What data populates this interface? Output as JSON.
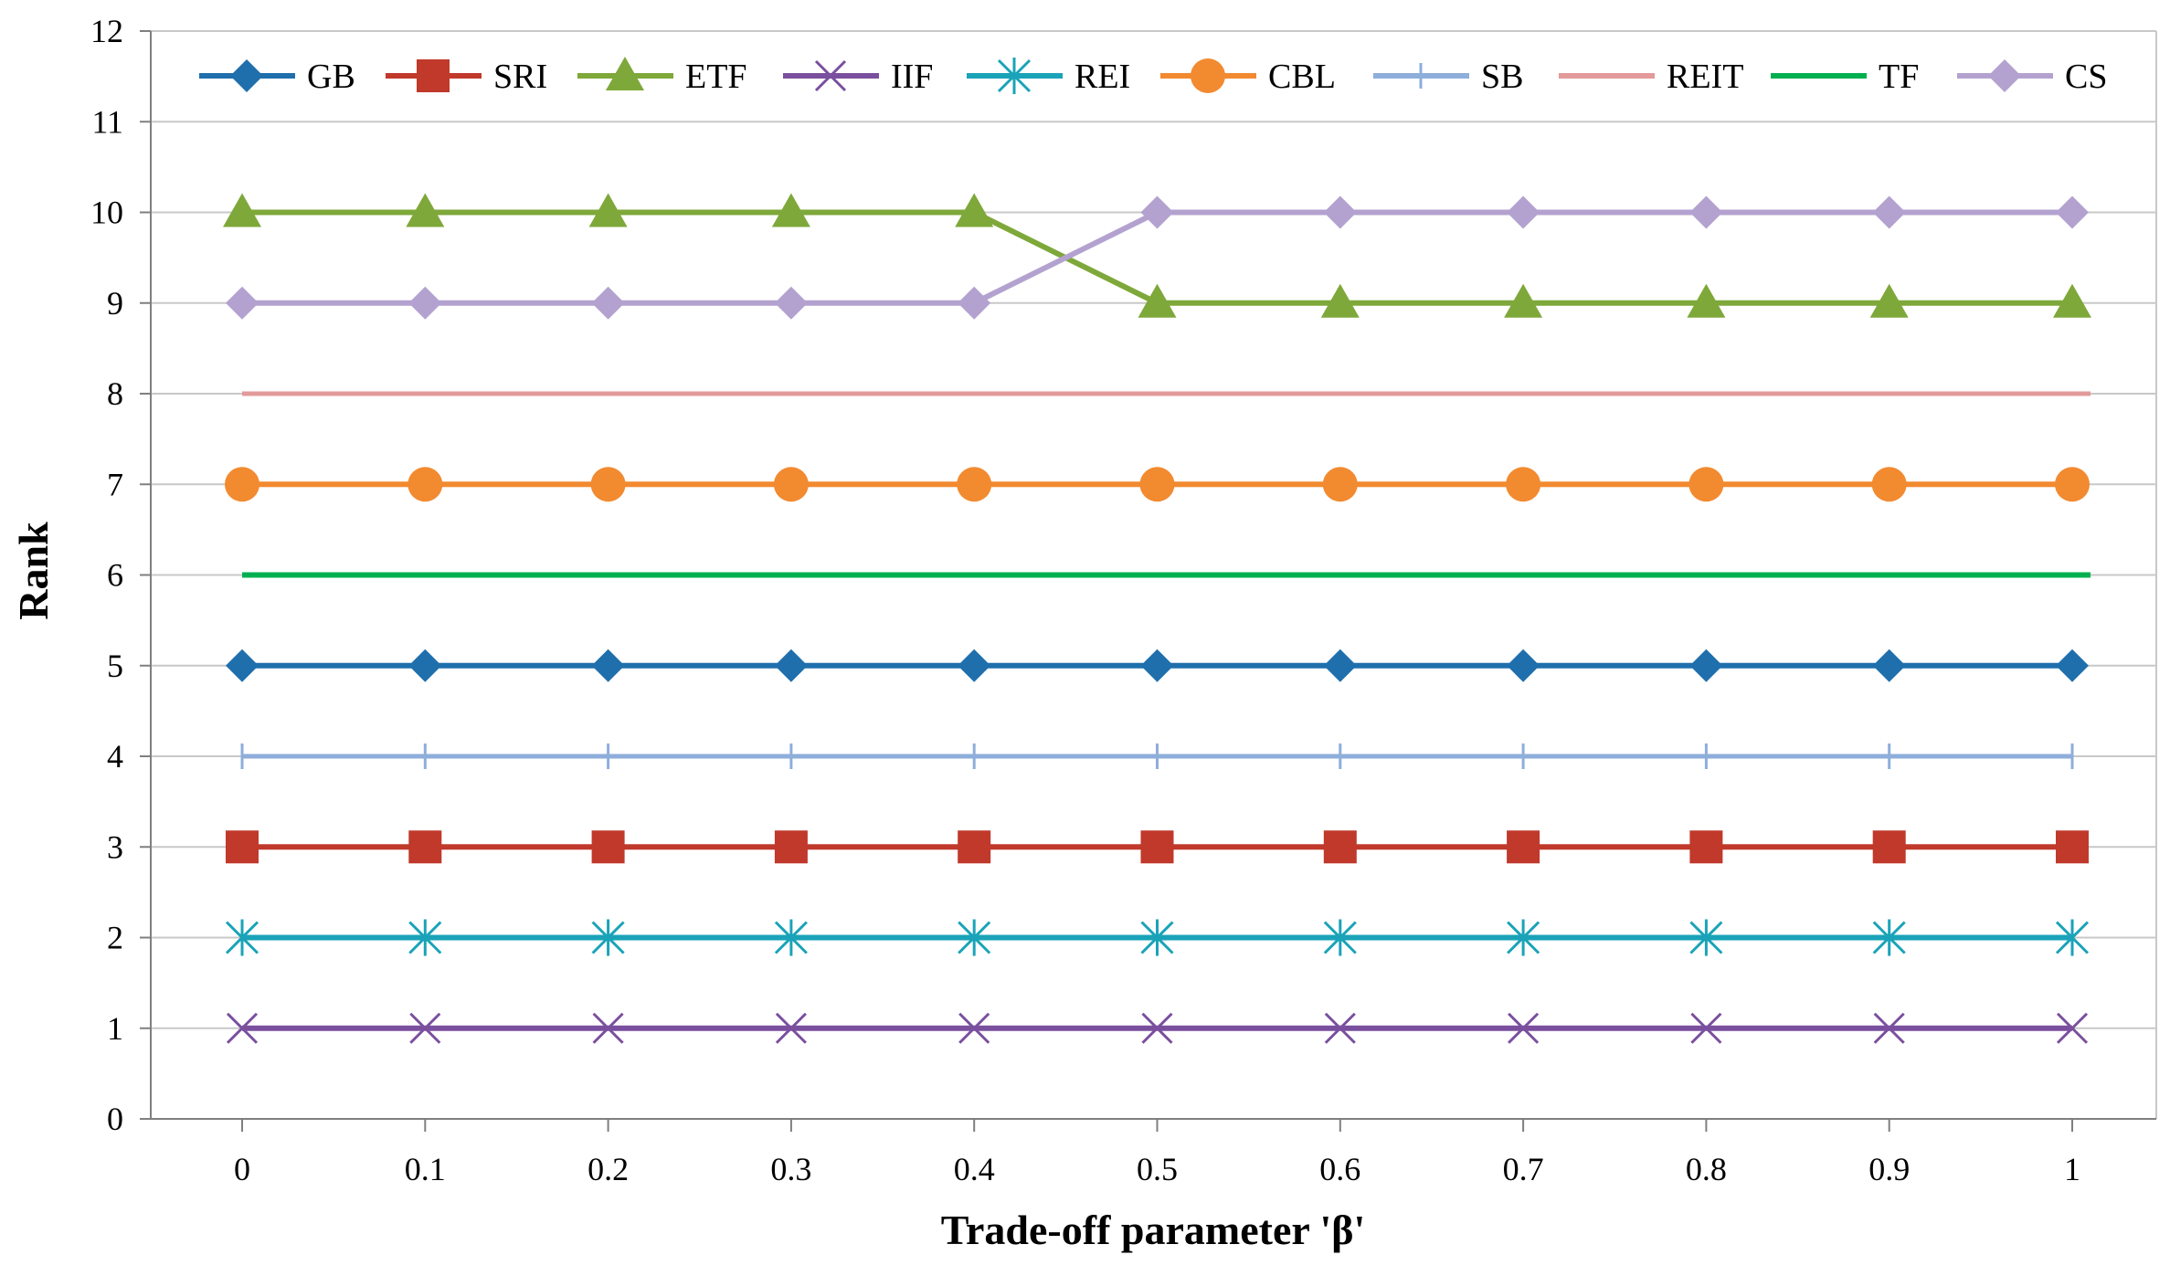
{
  "chart_data": {
    "type": "line",
    "xlabel": "Trade-off parameter 'β'",
    "ylabel": "Rank",
    "x": [
      0,
      0.1,
      0.2,
      0.3,
      0.4,
      0.5,
      0.6,
      0.7,
      0.8,
      0.9,
      1
    ],
    "x_tick_labels": [
      "0",
      "0.1",
      "0.2",
      "0.3",
      "0.4",
      "0.5",
      "0.6",
      "0.7",
      "0.8",
      "0.9",
      "1"
    ],
    "ylim": [
      0,
      12
    ],
    "y_ticks": [
      0,
      1,
      2,
      3,
      4,
      5,
      6,
      7,
      8,
      9,
      10,
      11,
      12
    ],
    "grid": "horizontal",
    "legend_position": "top",
    "series": [
      {
        "name": "GB",
        "color": "#1f6fad",
        "marker": "diamond",
        "values": [
          5,
          5,
          5,
          5,
          5,
          5,
          5,
          5,
          5,
          5,
          5
        ]
      },
      {
        "name": "SRI",
        "color": "#c0392b",
        "marker": "square",
        "values": [
          3,
          3,
          3,
          3,
          3,
          3,
          3,
          3,
          3,
          3,
          3
        ]
      },
      {
        "name": "ETF",
        "color": "#7ea83a",
        "marker": "triangle",
        "values": [
          10,
          10,
          10,
          10,
          10,
          9,
          9,
          9,
          9,
          9,
          9
        ]
      },
      {
        "name": "IIF",
        "color": "#7a4f9e",
        "marker": "x",
        "values": [
          1,
          1,
          1,
          1,
          1,
          1,
          1,
          1,
          1,
          1,
          1
        ]
      },
      {
        "name": "REI",
        "color": "#1aa3b8",
        "marker": "star",
        "values": [
          2,
          2,
          2,
          2,
          2,
          2,
          2,
          2,
          2,
          2,
          2
        ]
      },
      {
        "name": "CBL",
        "color": "#f28a30",
        "marker": "circle",
        "values": [
          7,
          7,
          7,
          7,
          7,
          7,
          7,
          7,
          7,
          7,
          7
        ]
      },
      {
        "name": "SB",
        "color": "#8eaedb",
        "marker": "plus",
        "values": [
          4,
          4,
          4,
          4,
          4,
          4,
          4,
          4,
          4,
          4,
          4
        ]
      },
      {
        "name": "REIT",
        "color": "#e39a9a",
        "marker": "none",
        "values": [
          8,
          8,
          8,
          8,
          8,
          8,
          8,
          8,
          8,
          8,
          8
        ]
      },
      {
        "name": "TF",
        "color": "#00b050",
        "marker": "none",
        "values": [
          6,
          6,
          6,
          6,
          6,
          6,
          6,
          6,
          6,
          6,
          6
        ]
      },
      {
        "name": "CS",
        "color": "#b3a2cf",
        "marker": "diamond",
        "values": [
          9,
          9,
          9,
          9,
          9,
          10,
          10,
          10,
          10,
          10,
          10
        ]
      }
    ]
  }
}
